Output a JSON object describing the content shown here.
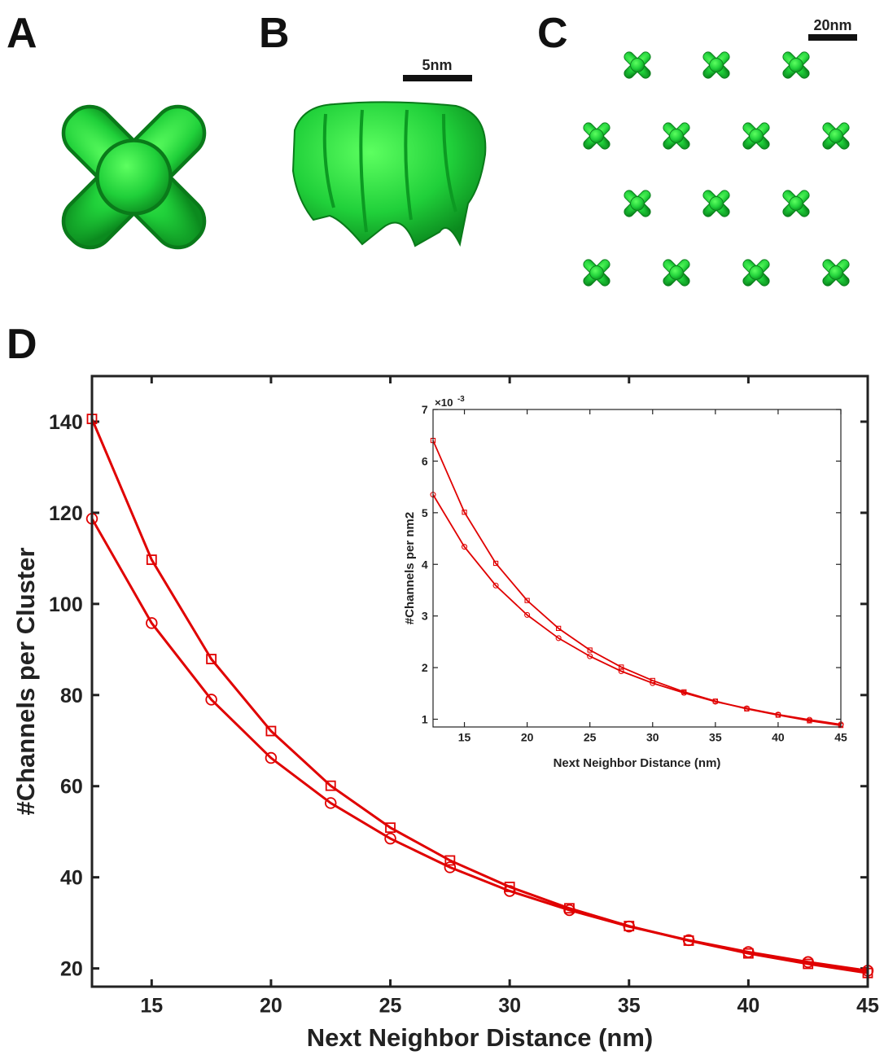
{
  "panel_labels": [
    "A",
    "B",
    "C",
    "D"
  ],
  "scale_bars": [
    "5nm",
    "20nm"
  ],
  "chart_data": [
    {
      "type": "line",
      "x_label": "Next Neighbor Distance (nm)",
      "y_label": "#Channels per Cluster",
      "x": [
        12.5,
        15,
        17.5,
        20,
        22.5,
        25,
        27.5,
        30,
        32.5,
        35,
        37.5,
        40,
        42.5,
        45
      ],
      "series": [
        {
          "marker": "square",
          "color": "#e00000",
          "values": [
            140.6,
            109.7,
            87.9,
            72.1,
            60.1,
            50.9,
            43.7,
            37.9,
            33.2,
            29.3,
            26.1,
            23.3,
            21.0,
            19.0
          ]
        },
        {
          "marker": "circle",
          "color": "#e00000",
          "values": [
            118.7,
            95.8,
            79.0,
            66.2,
            56.3,
            48.5,
            42.2,
            37.0,
            32.8,
            29.2,
            26.2,
            23.6,
            21.4,
            19.5
          ]
        }
      ],
      "xlim": [
        12.5,
        45
      ],
      "xticks": [
        15,
        20,
        25,
        30,
        35,
        40,
        45
      ],
      "ylim": [
        16,
        150
      ],
      "yticks": [
        20,
        40,
        60,
        80,
        100,
        120,
        140
      ]
    },
    {
      "type": "line",
      "x_label": "Next Neighbor Distance (nm)",
      "y_label": "#Channels per nm2",
      "y_multiplier": "×10",
      "y_multiplier_exponent": "-3",
      "x": [
        12.5,
        15,
        17.5,
        20,
        22.5,
        25,
        27.5,
        30,
        32.5,
        35,
        37.5,
        40,
        42.5,
        45
      ],
      "series": [
        {
          "marker": "square",
          "color": "#e00000",
          "values": [
            6.4,
            5.01,
            4.02,
            3.3,
            2.76,
            2.34,
            2.01,
            1.75,
            1.53,
            1.35,
            1.2,
            1.08,
            0.97,
            0.88
          ]
        },
        {
          "marker": "circle",
          "color": "#e00000",
          "values": [
            5.35,
            4.34,
            3.59,
            3.02,
            2.57,
            2.22,
            1.93,
            1.7,
            1.51,
            1.34,
            1.21,
            1.09,
            0.99,
            0.9
          ]
        }
      ],
      "xlim": [
        12.5,
        45
      ],
      "xticks": [
        15,
        20,
        25,
        30,
        35,
        40,
        45
      ],
      "ylim": [
        0.85,
        7
      ],
      "yticks": [
        1,
        2,
        3,
        4,
        5,
        6,
        7
      ]
    }
  ]
}
